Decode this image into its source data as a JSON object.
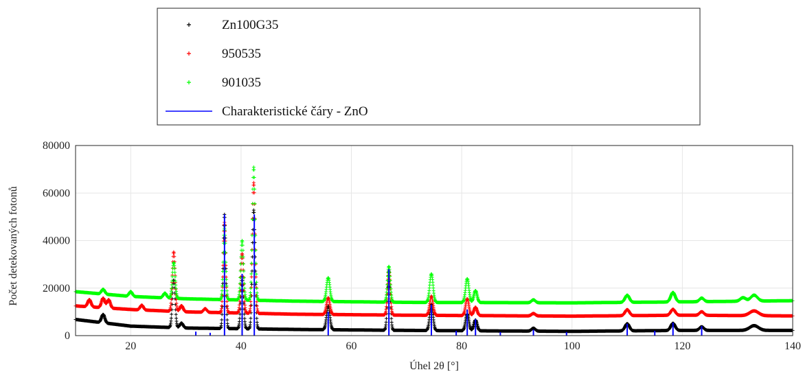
{
  "chart_data": {
    "type": "scatter",
    "title": "",
    "xlabel": "Úhel 2θ [°]",
    "ylabel": "Počet detekovaných fotonů",
    "xlim": [
      10,
      140
    ],
    "ylim": [
      0,
      80000
    ],
    "xticks": [
      20,
      40,
      60,
      80,
      100,
      120,
      140
    ],
    "yticks": [
      0,
      20000,
      40000,
      60000,
      80000
    ],
    "grid": true,
    "legend_position": "top-center (above plot)",
    "series": [
      {
        "name": "Zn100G35",
        "color": "#000000",
        "marker": "+",
        "baseline": [
          [
            10,
            6800
          ],
          [
            20,
            4000
          ],
          [
            30,
            3200
          ],
          [
            50,
            2600
          ],
          [
            70,
            2200
          ],
          [
            100,
            1800
          ],
          [
            120,
            2200
          ],
          [
            140,
            2200
          ]
        ],
        "peaks": [
          [
            15,
            3500,
            0.3
          ],
          [
            27.8,
            20000,
            0.25
          ],
          [
            29.2,
            2000,
            0.3
          ],
          [
            37.0,
            48000,
            0.22
          ],
          [
            40.2,
            22000,
            0.25
          ],
          [
            42.3,
            50000,
            0.25
          ],
          [
            55.8,
            10000,
            0.3
          ],
          [
            66.8,
            25000,
            0.25
          ],
          [
            74.5,
            11000,
            0.3
          ],
          [
            81.0,
            7000,
            0.3
          ],
          [
            82.5,
            4500,
            0.3
          ],
          [
            93.0,
            1200,
            0.35
          ],
          [
            110.0,
            3000,
            0.4
          ],
          [
            118.3,
            3000,
            0.4
          ],
          [
            123.5,
            1500,
            0.4
          ],
          [
            133.0,
            2000,
            0.8
          ]
        ]
      },
      {
        "name": "950535",
        "color": "#ff0000",
        "marker": "+",
        "baseline": [
          [
            10,
            12500
          ],
          [
            20,
            11000
          ],
          [
            30,
            10000
          ],
          [
            50,
            9000
          ],
          [
            70,
            8600
          ],
          [
            100,
            8200
          ],
          [
            120,
            8600
          ],
          [
            140,
            8300
          ]
        ],
        "peaks": [
          [
            12.5,
            3000,
            0.3
          ],
          [
            15,
            4000,
            0.3
          ],
          [
            16,
            3500,
            0.3
          ],
          [
            22,
            2000,
            0.3
          ],
          [
            27.8,
            25000,
            0.25
          ],
          [
            29.2,
            2500,
            0.3
          ],
          [
            33.5,
            1500,
            0.3
          ],
          [
            37.0,
            38000,
            0.22
          ],
          [
            40.2,
            25000,
            0.25
          ],
          [
            42.3,
            55000,
            0.25
          ],
          [
            55.8,
            7000,
            0.3
          ],
          [
            66.8,
            18000,
            0.25
          ],
          [
            74.5,
            8000,
            0.3
          ],
          [
            81.0,
            7000,
            0.3
          ],
          [
            82.5,
            3500,
            0.3
          ],
          [
            93.0,
            1000,
            0.35
          ],
          [
            110.0,
            2500,
            0.4
          ],
          [
            118.3,
            2500,
            0.4
          ],
          [
            123.5,
            1500,
            0.4
          ],
          [
            133.0,
            2000,
            0.8
          ]
        ]
      },
      {
        "name": "901035",
        "color": "#00ff00",
        "marker": "+",
        "baseline": [
          [
            10,
            18500
          ],
          [
            20,
            16500
          ],
          [
            30,
            15500
          ],
          [
            50,
            14500
          ],
          [
            70,
            14000
          ],
          [
            100,
            13800
          ],
          [
            120,
            14200
          ],
          [
            140,
            14700
          ]
        ],
        "peaks": [
          [
            15,
            2000,
            0.3
          ],
          [
            20,
            2000,
            0.3
          ],
          [
            26.2,
            2000,
            0.3
          ],
          [
            27.8,
            15000,
            0.25
          ],
          [
            37.0,
            30000,
            0.22
          ],
          [
            40.2,
            25000,
            0.25
          ],
          [
            42.3,
            56000,
            0.25
          ],
          [
            55.8,
            10000,
            0.3
          ],
          [
            66.8,
            15000,
            0.25
          ],
          [
            74.5,
            12000,
            0.3
          ],
          [
            81.0,
            10000,
            0.3
          ],
          [
            82.5,
            5000,
            0.3
          ],
          [
            93.0,
            1200,
            0.35
          ],
          [
            110.0,
            3000,
            0.4
          ],
          [
            118.3,
            4000,
            0.4
          ],
          [
            123.5,
            1500,
            0.4
          ],
          [
            131.0,
            1500,
            0.5
          ],
          [
            133.0,
            2500,
            0.6
          ]
        ]
      },
      {
        "name": "Charakteristické čáry - ZnO",
        "color": "#0000ff",
        "marker": "line",
        "lines": [
          [
            31.8,
            1700
          ],
          [
            34.4,
            1200
          ],
          [
            37.0,
            51000
          ],
          [
            40.2,
            26000
          ],
          [
            42.4,
            51000
          ],
          [
            55.8,
            10000
          ],
          [
            66.8,
            28000
          ],
          [
            74.5,
            13000
          ],
          [
            79.0,
            2000
          ],
          [
            81.0,
            11000
          ],
          [
            82.5,
            7000
          ],
          [
            87.0,
            1500
          ],
          [
            93.0,
            2500
          ],
          [
            99.0,
            1500
          ],
          [
            110.0,
            5000
          ],
          [
            115.0,
            2000
          ],
          [
            118.3,
            5500
          ],
          [
            123.5,
            4000
          ]
        ]
      }
    ]
  }
}
